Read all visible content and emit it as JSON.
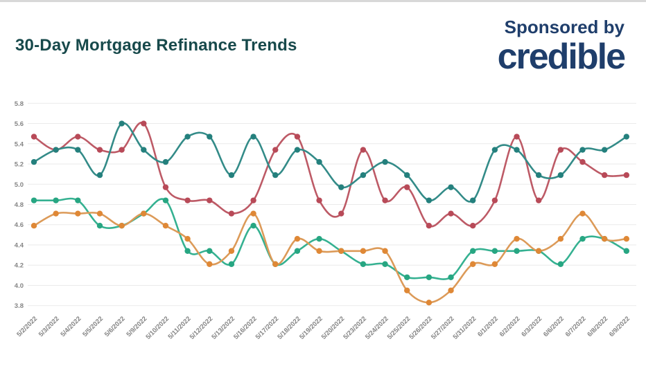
{
  "page": {
    "background": "#ffffff",
    "top_strip_color": "#d8d8d8"
  },
  "header": {
    "title": "30-Day Mortgage Refinance Trends",
    "title_color": "#17494b",
    "sponsored_by": "Sponsored by",
    "sponsor_name": "credible",
    "sponsor_color": "#1f3e6b"
  },
  "chart_data": {
    "type": "line",
    "title": "30-Day Mortgage Refinance Trends",
    "legend": "none",
    "grid": true,
    "axis_color": "#858585",
    "grid_color": "#eaeaea",
    "ylim": [
      3.8,
      5.8
    ],
    "yticks": [
      "5.8",
      "5.6",
      "5.4",
      "5.2",
      "5.0",
      "4.8",
      "4.6",
      "4.4",
      "4.2",
      "4.0",
      "3.8"
    ],
    "categories": [
      "5/2/2022",
      "5/3/2022",
      "5/4/2022",
      "5/5/2022",
      "5/6/2022",
      "5/9/2022",
      "5/10/2022",
      "5/11/2022",
      "5/12/2022",
      "5/13/2022",
      "5/16/2022",
      "5/17/2022",
      "5/18/2022",
      "5/19/2022",
      "5/20/2022",
      "5/23/2022",
      "5/24/2022",
      "5/25/2022",
      "5/26/2022",
      "5/27/2022",
      "5/31/2022",
      "6/1/2022",
      "6/2/2022",
      "6/3/2022",
      "6/6/2022",
      "6/7/2022",
      "6/8/2022",
      "6/9/2022"
    ],
    "series": [
      {
        "name": "red",
        "line_color": "#bd5a66",
        "dot_color": "#b84a58",
        "values": [
          5.47,
          5.34,
          5.47,
          5.34,
          5.34,
          5.6,
          4.97,
          4.84,
          4.84,
          4.71,
          4.84,
          5.34,
          5.47,
          4.84,
          4.71,
          5.34,
          4.84,
          4.97,
          4.59,
          4.71,
          4.59,
          4.84,
          5.47,
          4.84,
          5.34,
          5.22,
          5.09,
          5.09
        ]
      },
      {
        "name": "teal",
        "line_color": "#338b88",
        "dot_color": "#24807d",
        "values": [
          5.22,
          5.34,
          5.34,
          5.09,
          5.6,
          5.34,
          5.22,
          5.47,
          5.47,
          5.09,
          5.47,
          5.09,
          5.34,
          5.22,
          4.97,
          5.09,
          5.22,
          5.09,
          4.84,
          4.97,
          4.84,
          5.34,
          5.34,
          5.09,
          5.09,
          5.34,
          5.34,
          5.47
        ]
      },
      {
        "name": "green",
        "line_color": "#35b191",
        "dot_color": "#27a682",
        "values": [
          4.84,
          4.84,
          4.84,
          4.59,
          4.59,
          4.71,
          4.84,
          4.34,
          4.34,
          4.21,
          4.59,
          4.21,
          4.34,
          4.46,
          4.34,
          4.21,
          4.21,
          4.08,
          4.08,
          4.08,
          4.34,
          4.34,
          4.34,
          4.34,
          4.21,
          4.46,
          4.46,
          4.34
        ]
      },
      {
        "name": "orange",
        "line_color": "#dc9a58",
        "dot_color": "#df8836",
        "values": [
          4.59,
          4.71,
          4.71,
          4.71,
          4.59,
          4.71,
          4.59,
          4.46,
          4.21,
          4.34,
          4.71,
          4.21,
          4.46,
          4.34,
          4.34,
          4.34,
          4.34,
          3.95,
          3.83,
          3.95,
          4.21,
          4.21,
          4.46,
          4.34,
          4.46,
          4.71,
          4.46,
          4.46
        ]
      }
    ]
  }
}
